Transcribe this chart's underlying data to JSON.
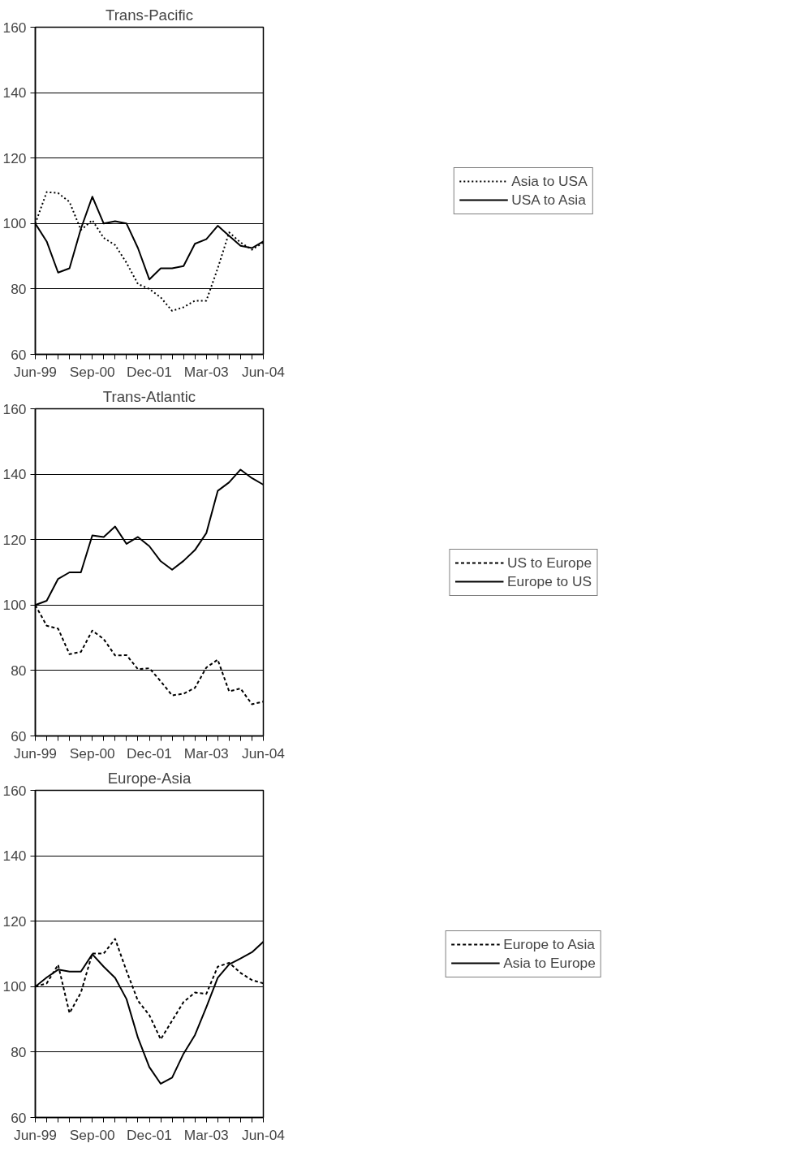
{
  "chart_data": [
    {
      "type": "line",
      "title": "Trans-Pacific",
      "categories": [
        "Jun-99",
        null,
        null,
        null,
        null,
        "Sep-00",
        null,
        null,
        null,
        null,
        "Dec-01",
        null,
        null,
        null,
        null,
        "Mar-03",
        null,
        null,
        null,
        null,
        "Jun-04"
      ],
      "ylim": [
        60,
        160
      ],
      "yticks": [
        60,
        80,
        100,
        120,
        140,
        160
      ],
      "grid": "y",
      "legend": "right",
      "series": [
        {
          "name": "Asia to USA",
          "color": "#000000",
          "line_style": "dotted",
          "values": [
            100,
            109.6,
            109.3,
            106.6,
            98,
            101,
            95.6,
            93.4,
            88,
            81.5,
            80,
            77.4,
            73.3,
            74.4,
            76.4,
            76.4,
            86.3,
            97.3,
            94.2,
            92,
            94.2
          ]
        },
        {
          "name": "USA to Asia",
          "color": "#000000",
          "line_style": "solid",
          "values": [
            100,
            94.5,
            85,
            86.3,
            98.4,
            108.2,
            100,
            100.7,
            100,
            92.5,
            82.9,
            86.3,
            86.3,
            87,
            93.8,
            95.2,
            99.3,
            96.2,
            93.2,
            92.5,
            94.5
          ]
        }
      ]
    },
    {
      "type": "line",
      "title": "Trans-Atlantic",
      "categories": [
        "Jun-99",
        null,
        null,
        null,
        null,
        "Sep-00",
        null,
        null,
        null,
        null,
        "Dec-01",
        null,
        null,
        null,
        null,
        "Mar-03",
        null,
        null,
        null,
        null,
        "Jun-04"
      ],
      "ylim": [
        60,
        160
      ],
      "yticks": [
        60,
        80,
        100,
        120,
        140,
        160
      ],
      "grid": "y",
      "legend": "right",
      "series": [
        {
          "name": "US to Europe",
          "color": "#000000",
          "line_style": "dashed",
          "values": [
            100,
            93.7,
            92.8,
            85,
            85.7,
            92.2,
            89.6,
            84.6,
            84.7,
            80.4,
            80.7,
            76.7,
            72.4,
            72.9,
            74.7,
            80.9,
            83.3,
            73.6,
            74.5,
            69.7,
            70.5
          ]
        },
        {
          "name": "Europe to US",
          "color": "#000000",
          "line_style": "solid",
          "values": [
            100,
            101.3,
            108,
            110,
            110,
            121.3,
            120.8,
            124,
            118.7,
            120.8,
            118,
            113.4,
            110.8,
            113.5,
            116.8,
            122,
            134.9,
            137.5,
            141.4,
            138.8,
            136.8
          ]
        }
      ]
    },
    {
      "type": "line",
      "title": "Europe-Asia",
      "categories": [
        "Jun-99",
        null,
        null,
        null,
        null,
        "Sep-00",
        null,
        null,
        null,
        null,
        "Dec-01",
        null,
        null,
        null,
        null,
        "Mar-03",
        null,
        null,
        null,
        null,
        "Jun-04"
      ],
      "ylim": [
        60,
        160
      ],
      "yticks": [
        60,
        80,
        100,
        120,
        140,
        160
      ],
      "grid": "y",
      "legend": "right",
      "series": [
        {
          "name": "Europe to Asia",
          "color": "#000000",
          "line_style": "dashed",
          "values": [
            100,
            101,
            106.7,
            91.9,
            98.2,
            110.1,
            110.1,
            114.6,
            104.8,
            95.7,
            91.3,
            83.9,
            89.6,
            95.3,
            98.2,
            97.8,
            106.1,
            107.3,
            104.2,
            102,
            101
          ]
        },
        {
          "name": "Asia to Europe",
          "color": "#000000",
          "line_style": "solid",
          "values": [
            100,
            102.8,
            105.2,
            104.6,
            104.6,
            109.9,
            106.1,
            102.7,
            96.2,
            84.4,
            75.4,
            70.3,
            72.2,
            79.5,
            85.2,
            93.7,
            102.7,
            106.8,
            108.6,
            110.5,
            113.7
          ]
        }
      ]
    }
  ]
}
